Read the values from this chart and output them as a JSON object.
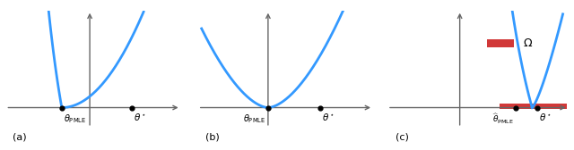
{
  "bg_color": "#ffffff",
  "curve_color": "#3399FF",
  "curve_lw": 2.0,
  "axis_color": "#666666",
  "dot_color": "#000000",
  "omega_color": "#CC2222",
  "label_a": "(a)",
  "label_b": "(b)",
  "label_c": "(c)",
  "theta_pmle_label": "$\\theta_{\\mathrm{PMLE}}$",
  "theta_hat_pmle_label": "$\\widehat{\\theta}_{\\mathrm{PMLE}}$",
  "theta_star_label": "$\\theta^\\star$",
  "omega_label": "$\\Omega$"
}
